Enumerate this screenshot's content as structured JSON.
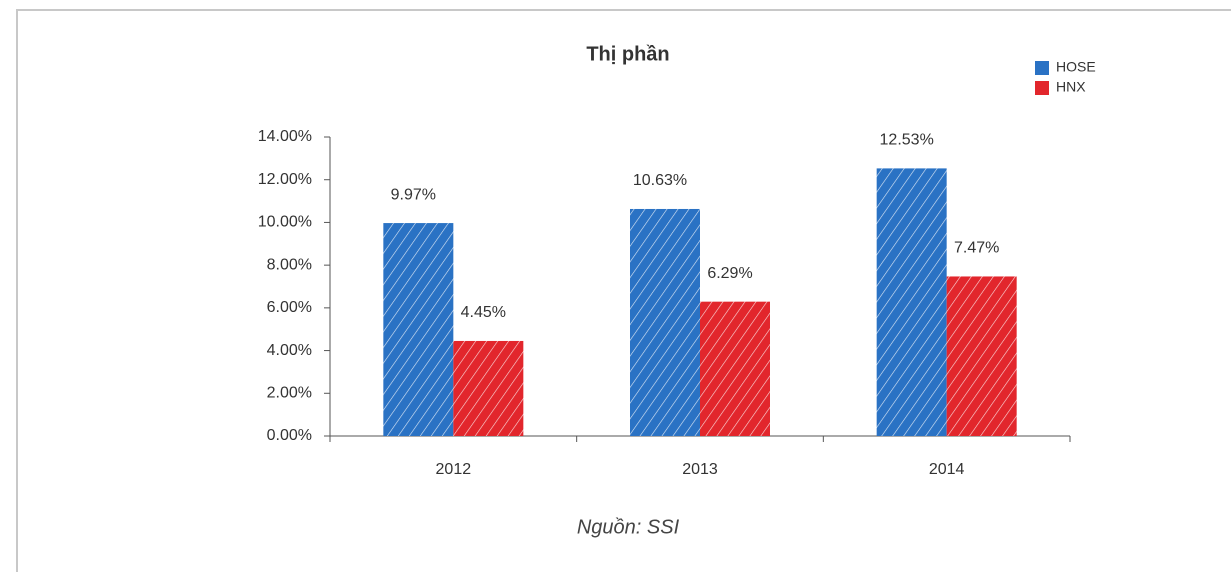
{
  "chart_data": {
    "type": "bar",
    "title": "Thị phần",
    "source": "Nguồn: SSI",
    "categories": [
      "2012",
      "2013",
      "2014"
    ],
    "series": [
      {
        "name": "HOSE",
        "color": "#2a72c4",
        "values": [
          9.97,
          10.63,
          12.53
        ],
        "value_labels": [
          "9.97%",
          "10.63%",
          "12.53%"
        ]
      },
      {
        "name": "HNX",
        "color": "#e2262c",
        "values": [
          4.45,
          6.29,
          7.47
        ],
        "value_labels": [
          "4.45%",
          "6.29%",
          "7.47%"
        ]
      }
    ],
    "ylim": [
      0,
      14
    ],
    "yticks": [
      {
        "value": 0,
        "label": "0.00%"
      },
      {
        "value": 2,
        "label": "2.00%"
      },
      {
        "value": 4,
        "label": "4.00%"
      },
      {
        "value": 6,
        "label": "6.00%"
      },
      {
        "value": 8,
        "label": "8.00%"
      },
      {
        "value": 10,
        "label": "10.00%"
      },
      {
        "value": 12,
        "label": "12.00%"
      },
      {
        "value": 14,
        "label": "14.00%"
      }
    ],
    "grid": false,
    "legend": "top-right",
    "hatched": true
  }
}
